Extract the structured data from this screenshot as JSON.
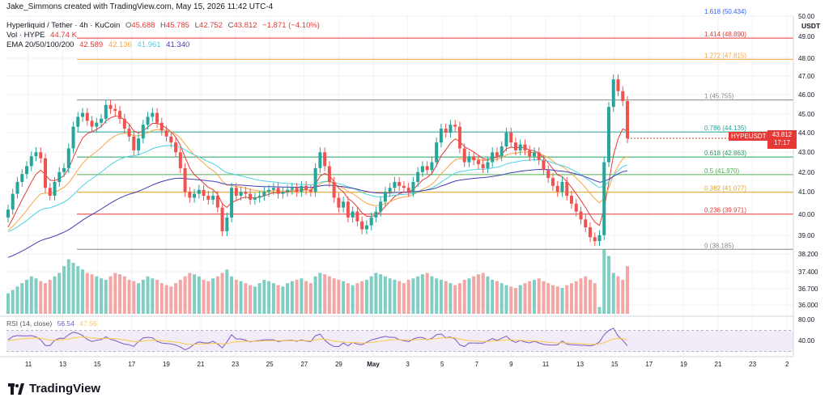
{
  "author_line": "Jake_Simmons created with TradingView.com, May 15, 2026 11:42 UTC-4",
  "header": {
    "symbol": "Hyperliquid / Tether · 4h · KuCoin",
    "o_label": "O",
    "o": "45.688",
    "h_label": "H",
    "h": "45.785",
    "l_label": "L",
    "l": "42.752",
    "c_label": "C",
    "c": "43.812",
    "change": "−1.871 (−4.10%)",
    "vol_label": "Vol · HYPE",
    "vol": "44.74 K",
    "ema_label": "EMA 20/50/100/200",
    "ema": [
      "42.589",
      "42.136",
      "41.961",
      "41.340"
    ],
    "ema_colors": [
      "#e53935",
      "#f7a543",
      "#4dd0e1",
      "#3f3fb4"
    ]
  },
  "currency": "USDT",
  "last_price": {
    "ticker": "HYPEUSDT",
    "price": "43.812",
    "countdown": "17:17"
  },
  "brand": "TradingView",
  "rsi": {
    "label": "RSI (14, close)",
    "value": "56.54",
    "ma": "47.56",
    "ticks": [
      "80.00",
      "40.00"
    ]
  },
  "chart_data": {
    "type": "candlestick",
    "y_ticks": [
      "50.00",
      "49.00",
      "48.00",
      "47.00",
      "46.00",
      "45.00",
      "44.00",
      "43.00",
      "42.00",
      "41.00",
      "40.00",
      "39.00",
      "38.200",
      "37.400",
      "36.700",
      "36.000"
    ],
    "x_ticks": [
      "11",
      "13",
      "15",
      "17",
      "19",
      "21",
      "23",
      "25",
      "27",
      "29",
      "May",
      "3",
      "5",
      "7",
      "9",
      "11",
      "13",
      "15",
      "17",
      "19",
      "21",
      "23",
      "2"
    ],
    "fib_levels": [
      {
        "label": "1.618 (50.434)",
        "price": 50.434,
        "color": "#2962ff"
      },
      {
        "label": "1.414 (48.890)",
        "price": 48.89,
        "color": "#e53935"
      },
      {
        "label": "1.272 (47.815)",
        "price": 47.815,
        "color": "#f7a543"
      },
      {
        "label": "1 (45.755)",
        "price": 45.755,
        "color": "#888888"
      },
      {
        "label": "0.786 (44.135)",
        "price": 44.135,
        "color": "#26a69a"
      },
      {
        "label": "0.618 (42.863)",
        "price": 42.863,
        "color": "#22a060"
      },
      {
        "label": "0.5 (41.970)",
        "price": 41.97,
        "color": "#4caf50"
      },
      {
        "label": "0.382 (41.077)",
        "price": 41.077,
        "color": "#e6a020"
      },
      {
        "label": "0.236 (39.971)",
        "price": 39.971,
        "color": "#e53935"
      },
      {
        "label": "0 (38.185)",
        "price": 38.185,
        "color": "#888888"
      }
    ],
    "closes": [
      40.2,
      41,
      41.6,
      42,
      42.4,
      42.9,
      43.1,
      42.8,
      41.3,
      40.9,
      41.6,
      42.1,
      42.3,
      43.3,
      44.4,
      44.9,
      45.1,
      44.7,
      44.4,
      44.6,
      44.8,
      45.5,
      45.3,
      45.2,
      44.8,
      44.3,
      43.9,
      43.2,
      43.8,
      44.5,
      44.9,
      45.1,
      44.6,
      44.2,
      43.9,
      43.6,
      43.1,
      42.3,
      41.1,
      40.8,
      41,
      41.2,
      40.9,
      40.7,
      40.9,
      40.3,
      39.1,
      39.8,
      41.3,
      40.9,
      41.1,
      41,
      40.7,
      40.8,
      40.9,
      41.1,
      41.2,
      41.3,
      41,
      41.1,
      41.2,
      41.3,
      41.1,
      41.4,
      41.2,
      41.1,
      42.3,
      43.1,
      42.4,
      41.6,
      40.8,
      40.3,
      40.6,
      39.8,
      40.1,
      39.6,
      39.2,
      39.4,
      39.8,
      40.1,
      40.6,
      41.1,
      41.3,
      41.6,
      41.4,
      41.3,
      41.1,
      41.6,
      42.1,
      42.4,
      42.2,
      42.6,
      43.6,
      44.3,
      44.1,
      44.5,
      44.4,
      43.3,
      42.6,
      42.9,
      42.7,
      42.5,
      42.3,
      42.6,
      43.1,
      42.9,
      43.4,
      44.1,
      43.6,
      43.2,
      43.5,
      43.2,
      42.9,
      43.1,
      42.7,
      42.2,
      41.8,
      41.4,
      41.1,
      41.6,
      40.9,
      40.5,
      40.1,
      39.7,
      39.3,
      38.8,
      38.6,
      38.9,
      42.6,
      45.4,
      46.8,
      46.2,
      45.7,
      43.812
    ],
    "volumes": [
      30,
      35,
      40,
      45,
      50,
      55,
      52,
      48,
      45,
      50,
      55,
      60,
      70,
      80,
      75,
      70,
      65,
      60,
      58,
      55,
      52,
      50,
      55,
      60,
      58,
      55,
      50,
      48,
      45,
      50,
      55,
      52,
      50,
      45,
      42,
      40,
      45,
      50,
      55,
      60,
      58,
      55,
      50,
      48,
      52,
      55,
      60,
      65,
      55,
      50,
      48,
      45,
      42,
      40,
      45,
      50,
      48,
      45,
      42,
      40,
      45,
      48,
      50,
      52,
      48,
      45,
      55,
      60,
      58,
      55,
      52,
      50,
      48,
      45,
      42,
      45,
      48,
      50,
      55,
      60,
      58,
      55,
      52,
      50,
      48,
      45,
      50,
      52,
      55,
      58,
      60,
      55,
      52,
      50,
      48,
      45,
      42,
      45,
      50,
      52,
      55,
      58,
      60,
      55,
      50,
      48,
      45,
      42,
      40,
      38,
      42,
      45,
      48,
      50,
      52,
      48,
      45,
      42,
      40,
      38,
      42,
      45,
      48,
      52,
      55,
      50,
      45,
      10,
      95,
      85,
      60,
      55,
      50,
      70
    ]
  }
}
